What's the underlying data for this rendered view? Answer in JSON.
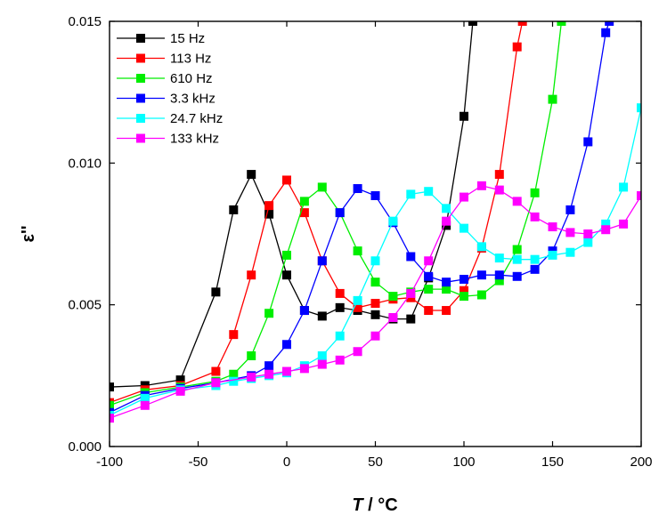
{
  "chart_data": {
    "type": "line",
    "title": "",
    "xlabel_italic": "T",
    "xlabel_rest": " / °C",
    "ylabel": "ε''",
    "xlim": [
      -100,
      200
    ],
    "ylim": [
      0.0,
      0.015
    ],
    "xticks": [
      -100,
      -50,
      0,
      50,
      100,
      150,
      200
    ],
    "xtick_labels": [
      "-100",
      "-50",
      "0",
      "50",
      "100",
      "150",
      "200"
    ],
    "yticks": [
      0.0,
      0.005,
      0.01,
      0.015
    ],
    "ytick_labels": [
      "0.000",
      "0.005",
      "0.010",
      "0.015"
    ],
    "legend_position": "top-left",
    "marker": "square",
    "series": [
      {
        "name": "15 Hz",
        "color": "#000000",
        "x": [
          -100,
          -80,
          -60,
          -40,
          -30,
          -20,
          -10,
          0,
          10,
          20,
          30,
          40,
          50,
          60,
          70,
          80,
          90,
          100,
          105
        ],
        "y": [
          0.0021,
          0.00215,
          0.00235,
          0.00545,
          0.00835,
          0.0096,
          0.0082,
          0.00605,
          0.0048,
          0.0046,
          0.0049,
          0.0048,
          0.00465,
          0.0045,
          0.0045,
          0.00595,
          0.0078,
          0.01165,
          0.015
        ]
      },
      {
        "name": "113 Hz",
        "color": "#ff0000",
        "x": [
          -100,
          -80,
          -60,
          -40,
          -30,
          -20,
          -10,
          0,
          10,
          20,
          30,
          40,
          50,
          60,
          70,
          80,
          90,
          100,
          110,
          120,
          130,
          133
        ],
        "y": [
          0.00155,
          0.002,
          0.00215,
          0.00265,
          0.00395,
          0.00605,
          0.0085,
          0.0094,
          0.00825,
          0.00655,
          0.0054,
          0.0049,
          0.00505,
          0.0052,
          0.00525,
          0.0048,
          0.0048,
          0.0055,
          0.007,
          0.0096,
          0.0141,
          0.015
        ]
      },
      {
        "name": "610 Hz",
        "color": "#00ee00",
        "x": [
          -100,
          -80,
          -60,
          -40,
          -30,
          -20,
          -10,
          0,
          10,
          20,
          30,
          40,
          50,
          60,
          70,
          80,
          90,
          100,
          110,
          120,
          130,
          140,
          150,
          155
        ],
        "y": [
          0.00145,
          0.0019,
          0.0021,
          0.0023,
          0.00255,
          0.0032,
          0.0047,
          0.00675,
          0.00865,
          0.00915,
          0.00825,
          0.0069,
          0.0058,
          0.0053,
          0.00545,
          0.00555,
          0.00555,
          0.0053,
          0.00535,
          0.00585,
          0.00695,
          0.00895,
          0.01225,
          0.015
        ]
      },
      {
        "name": "3.3 kHz",
        "color": "#0000ff",
        "x": [
          -100,
          -80,
          -60,
          -40,
          -20,
          -10,
          0,
          10,
          20,
          30,
          40,
          50,
          60,
          70,
          80,
          90,
          100,
          110,
          120,
          130,
          140,
          150,
          160,
          170,
          180,
          182
        ],
        "y": [
          0.0012,
          0.0018,
          0.00205,
          0.00225,
          0.0025,
          0.00285,
          0.0036,
          0.0048,
          0.00655,
          0.00825,
          0.0091,
          0.00885,
          0.0079,
          0.0067,
          0.006,
          0.0058,
          0.0059,
          0.00605,
          0.00605,
          0.006,
          0.00625,
          0.0069,
          0.00835,
          0.01075,
          0.0146,
          0.015
        ]
      },
      {
        "name": "24.7 kHz",
        "color": "#00ffff",
        "x": [
          -100,
          -80,
          -60,
          -40,
          -30,
          -20,
          -10,
          0,
          10,
          20,
          30,
          40,
          50,
          60,
          70,
          80,
          90,
          100,
          110,
          120,
          130,
          140,
          150,
          160,
          170,
          180,
          190,
          200
        ],
        "y": [
          0.0011,
          0.0017,
          0.002,
          0.00215,
          0.0023,
          0.0024,
          0.0025,
          0.0026,
          0.00285,
          0.0032,
          0.0039,
          0.00515,
          0.00655,
          0.00795,
          0.0089,
          0.009,
          0.0084,
          0.0077,
          0.00705,
          0.00665,
          0.0066,
          0.0066,
          0.00675,
          0.00685,
          0.0072,
          0.00785,
          0.00915,
          0.01195
        ]
      },
      {
        "name": "133 kHz",
        "color": "#ff00ff",
        "x": [
          -100,
          -80,
          -60,
          -40,
          -20,
          -10,
          0,
          10,
          20,
          30,
          40,
          50,
          60,
          70,
          80,
          90,
          100,
          110,
          120,
          130,
          140,
          150,
          160,
          170,
          180,
          190,
          200
        ],
        "y": [
          0.001,
          0.00145,
          0.00195,
          0.00225,
          0.00245,
          0.00255,
          0.00265,
          0.00275,
          0.0029,
          0.00305,
          0.00335,
          0.0039,
          0.00455,
          0.0054,
          0.00655,
          0.00795,
          0.0088,
          0.0092,
          0.00905,
          0.00865,
          0.0081,
          0.00775,
          0.00755,
          0.0075,
          0.00765,
          0.00785,
          0.00885
        ]
      }
    ]
  }
}
